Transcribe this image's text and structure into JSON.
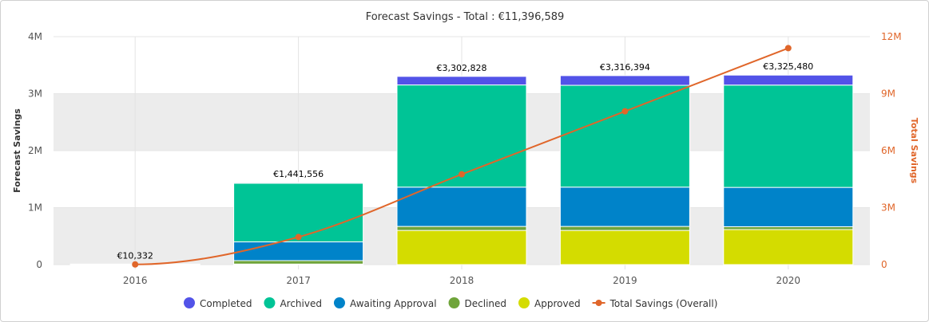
{
  "chart_data": {
    "type": "bar",
    "stacked": true,
    "title": "Forecast Savings - Total : €11,396,589",
    "ylabel": "Forecast Savings",
    "y2label": "Total Savings",
    "categories": [
      "2016",
      "2017",
      "2018",
      "2019",
      "2020"
    ],
    "ylim": [
      0,
      4000000
    ],
    "y_ticks": [
      "0",
      "1M",
      "2M",
      "3M",
      "4M"
    ],
    "y2lim": [
      0,
      12000000
    ],
    "y2_ticks": [
      "0",
      "3M",
      "6M",
      "9M",
      "12M"
    ],
    "grid": "alternating bands",
    "legend_position": "bottom",
    "series": [
      {
        "name": "Approved",
        "color": "#d4dc00",
        "values": [
          0,
          10000,
          600000,
          600000,
          615000
        ]
      },
      {
        "name": "Declined",
        "color": "#6fa43a",
        "values": [
          0,
          60000,
          70000,
          70000,
          50000
        ]
      },
      {
        "name": "Awaiting Approval",
        "color": "#0083c9",
        "values": [
          5000,
          330000,
          690000,
          690000,
          690000
        ]
      },
      {
        "name": "Archived",
        "color": "#00c496",
        "values": [
          5332,
          1026556,
          1792828,
          1786394,
          1795480
        ]
      },
      {
        "name": "Completed",
        "color": "#5253e8",
        "values": [
          0,
          15000,
          150000,
          170000,
          175000
        ]
      }
    ],
    "legend_order": [
      "Completed",
      "Archived",
      "Awaiting Approval",
      "Declined",
      "Approved"
    ],
    "data_labels": [
      "€10,332",
      "€1,441,556",
      "€3,302,828",
      "€3,316,394",
      "€3,325,480"
    ],
    "line_series": {
      "name": "Total Savings (Overall)",
      "color": "#e0662a",
      "axis": "right",
      "values": [
        10332,
        1451888,
        4754716,
        8071110,
        11396589
      ]
    }
  }
}
